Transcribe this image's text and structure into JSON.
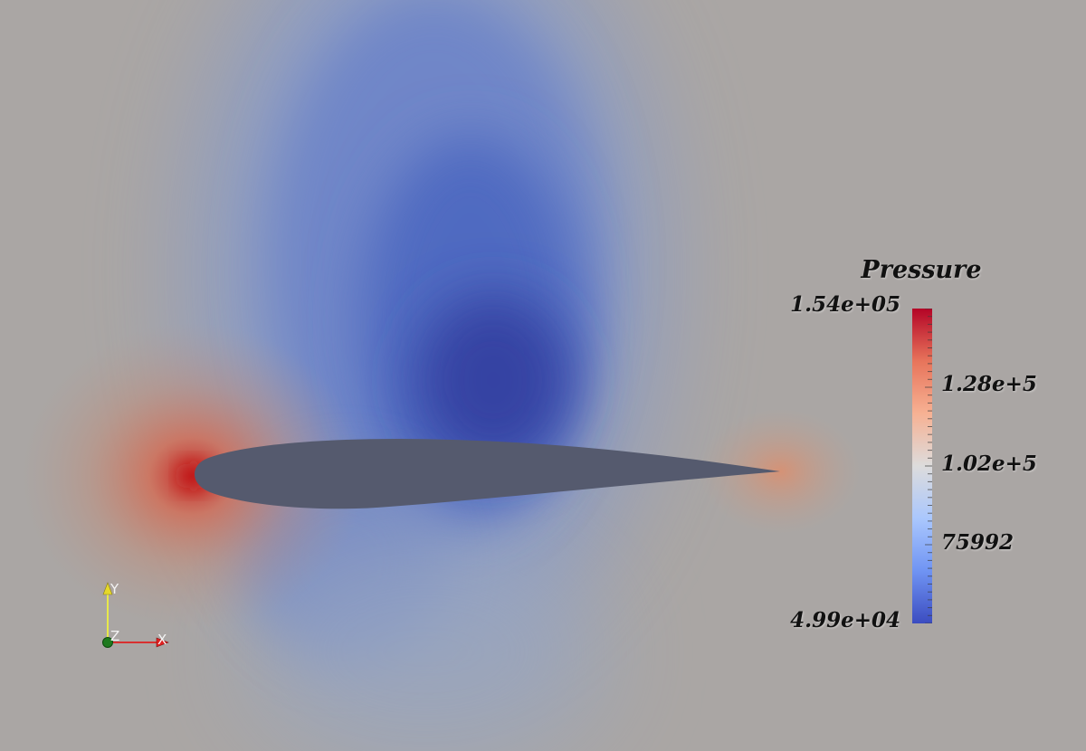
{
  "legend": {
    "title": "Pressure",
    "max_label": "1.54e+05",
    "min_label": "4.99e+04",
    "mid_labels": [
      "1.28e+5",
      "1.02e+5",
      "75992"
    ],
    "colormap": [
      "#3b4cc0",
      "#7094f3",
      "#aac7fd",
      "#dddcdc",
      "#f7b193",
      "#e7745b",
      "#b40426"
    ]
  },
  "axes_triad": {
    "x_label": "X",
    "y_label": "Y",
    "z_label": "Z"
  },
  "colors": {
    "background": "#ada59e",
    "airfoil": "#555a6e",
    "low_pressure": "#33449a",
    "high_pressure": "#c62a2a"
  }
}
